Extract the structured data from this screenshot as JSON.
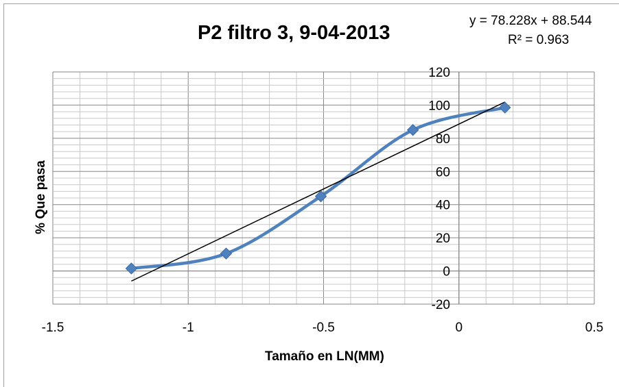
{
  "chart_data": {
    "type": "scatter",
    "title": "P2 filtro 3,   9-04-2013",
    "xlabel": "Tamaño en LN(MM)",
    "ylabel": "% Que pasa",
    "xlim": [
      -1.5,
      0.5
    ],
    "ylim": [
      -20,
      120
    ],
    "x_ticks": [
      "-1.5",
      "-1",
      "-0.5",
      "0",
      "0.5"
    ],
    "y_ticks": [
      "-20",
      "0",
      "20",
      "40",
      "60",
      "80",
      "100",
      "120"
    ],
    "series": [
      {
        "style": "smoothed line with diamond markers",
        "color": "#4f81bd",
        "x": [
          -1.21,
          -0.86,
          -0.51,
          -0.17,
          0.17
        ],
        "y": [
          1.5,
          10.5,
          45,
          85,
          98.5
        ]
      }
    ],
    "trendline": {
      "type": "linear",
      "color": "#000000",
      "equation": "y = 78.228x + 88.544",
      "r_squared": "R² = 0.963",
      "slope": 78.228,
      "intercept": 88.544
    },
    "grid": "major and minor"
  }
}
